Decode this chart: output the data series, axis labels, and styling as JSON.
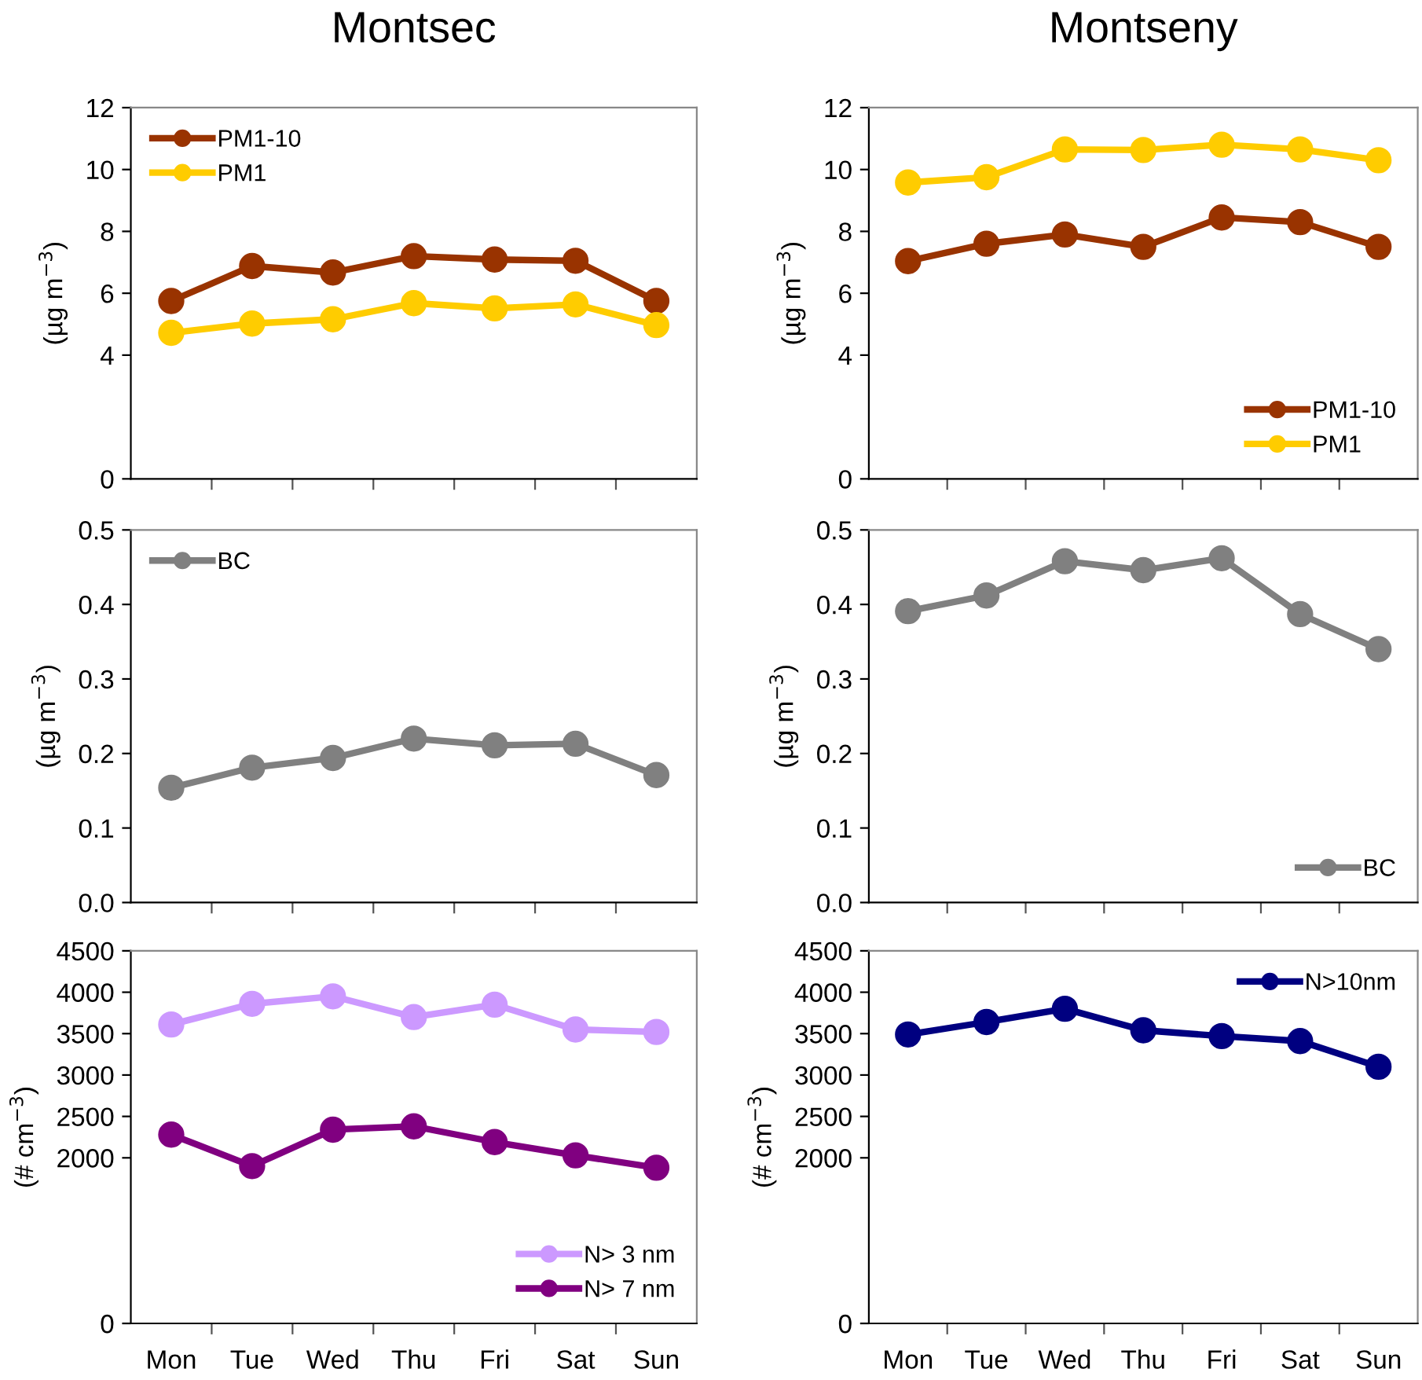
{
  "chart_data": [
    {
      "type": "line",
      "title": "Montsec",
      "ylabel": "(µg m$^{−3}$)",
      "categories": [
        null,
        null,
        null,
        null,
        null,
        null,
        null
      ],
      "ylim": [
        0,
        12
      ],
      "yticks": [
        0,
        4,
        6,
        8,
        10,
        12
      ],
      "tick_labels": "y",
      "legend": "top left",
      "marker": "circle",
      "grid": false,
      "series": [
        {
          "name": "PM1-10",
          "color": "#993300",
          "values": [
            5.75,
            6.88,
            6.67,
            7.2,
            7.09,
            7.05,
            5.75
          ]
        },
        {
          "name": "PM1",
          "color": "#ffcc00",
          "values": [
            4.72,
            5.02,
            5.16,
            5.68,
            5.51,
            5.64,
            4.97
          ]
        }
      ]
    },
    {
      "type": "line",
      "title": "Montseny",
      "ylabel": "(µg m$^{−3}$)",
      "categories": [
        null,
        null,
        null,
        null,
        null,
        null,
        null
      ],
      "ylim": [
        0,
        12
      ],
      "yticks": [
        0,
        4,
        6,
        8,
        10,
        12
      ],
      "tick_labels": "y",
      "legend": "bottom right",
      "marker": "circle",
      "grid": false,
      "series": [
        {
          "name": "PM1-10",
          "color": "#993300",
          "values": [
            7.04,
            7.6,
            7.9,
            7.5,
            8.45,
            8.3,
            7.5
          ]
        },
        {
          "name": "PM1",
          "color": "#ffcc00",
          "values": [
            9.58,
            9.75,
            10.65,
            10.63,
            10.8,
            10.65,
            10.3
          ]
        }
      ]
    },
    {
      "type": "line",
      "ylabel": "(µg m$^{−3}$)",
      "categories": [
        null,
        null,
        null,
        null,
        null,
        null,
        null
      ],
      "ylim": [
        0,
        0.5
      ],
      "yticks": [
        {
          "value": 0,
          "label": "0.0"
        },
        0.1,
        0.2,
        0.3,
        0.4,
        0.5
      ],
      "tick_labels": "y",
      "legend": "top left",
      "marker": "circle",
      "grid": false,
      "series": [
        {
          "name": "BC",
          "color": "#808080",
          "values": [
            0.154,
            0.181,
            0.194,
            0.22,
            0.211,
            0.213,
            0.171
          ]
        }
      ]
    },
    {
      "type": "line",
      "ylabel": "(µg m$^{−3}$)",
      "categories": [
        null,
        null,
        null,
        null,
        null,
        null,
        null
      ],
      "ylim": [
        0,
        0.5
      ],
      "yticks": [
        {
          "value": 0,
          "label": "0.0"
        },
        0.1,
        0.2,
        0.3,
        0.4,
        0.5
      ],
      "tick_labels": "y",
      "legend": "bottom right",
      "marker": "circle",
      "grid": false,
      "series": [
        {
          "name": "BC",
          "color": "#808080",
          "values": [
            0.391,
            0.412,
            0.458,
            0.446,
            0.462,
            0.387,
            0.34
          ]
        }
      ]
    },
    {
      "type": "line",
      "ylabel": "(# cm$^{−3}$)",
      "categories": [
        "Mon",
        "Tue",
        "Wed",
        "Thu",
        "Fri",
        "Sat",
        "Sun"
      ],
      "ylim": [
        0,
        4500
      ],
      "yticks": [
        0,
        2000,
        2500,
        3000,
        3500,
        4000,
        4500
      ],
      "legend": "bottom right",
      "marker": "circle",
      "grid": false,
      "series": [
        {
          "name": "N> 3 nm",
          "color": "#cc99ff",
          "values": [
            3610,
            3860,
            3950,
            3700,
            3850,
            3550,
            3520
          ]
        },
        {
          "name": "N> 7 nm",
          "color": "#800080",
          "values": [
            2280,
            1900,
            2340,
            2380,
            2190,
            2030,
            1880
          ]
        }
      ]
    },
    {
      "type": "line",
      "ylabel": "(# cm$^{−3}$)",
      "categories": [
        "Mon",
        "Tue",
        "Wed",
        "Thu",
        "Fri",
        "Sat",
        "Sun"
      ],
      "ylim": [
        0,
        4500
      ],
      "yticks": [
        0,
        2000,
        2500,
        3000,
        3500,
        4000,
        4500
      ],
      "legend": "top right",
      "marker": "circle",
      "grid": false,
      "series": [
        {
          "name": "N>10nm",
          "color": "#000080",
          "values": [
            3490,
            3640,
            3800,
            3540,
            3470,
            3410,
            3100
          ]
        }
      ]
    }
  ]
}
